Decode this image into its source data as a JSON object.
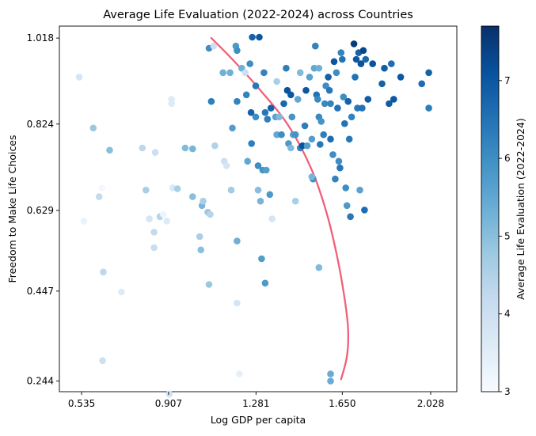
{
  "chart_data": {
    "type": "scatter",
    "title": "Average Life Evaluation (2022-2024) across Countries",
    "xlabel": "Log GDP per capita",
    "ylabel": "Freedom to Make Life Choices",
    "xlim": [
      0.44,
      2.14
    ],
    "ylim": [
      0.22,
      1.045
    ],
    "xticks": [
      0.535,
      0.907,
      1.281,
      1.65,
      2.028
    ],
    "xtick_labels": [
      "0.535",
      "0.907",
      "1.281",
      "1.650",
      "2.028"
    ],
    "yticks": [
      0.244,
      0.447,
      0.629,
      0.824,
      1.018
    ],
    "ytick_labels": [
      "0.244",
      "0.447",
      "0.629",
      "0.824",
      "1.018"
    ],
    "colorbar": {
      "label": "Average Life Evaluation (2022-2024)",
      "min": 3.0,
      "max": 7.7,
      "ticks": [
        3,
        4,
        5,
        6,
        7
      ],
      "tick_labels": [
        "3",
        "4",
        "5",
        "6",
        "7"
      ],
      "colormap": "Blues",
      "stops": [
        "#f7fbff",
        "#deebf7",
        "#c6dbef",
        "#9ecae1",
        "#6baed6",
        "#4292c6",
        "#2171b5",
        "#08519c",
        "#08306b"
      ]
    },
    "curve": {
      "color": "#f0607a",
      "points": [
        [
          1.09,
          1.018
        ],
        [
          1.18,
          0.97
        ],
        [
          1.3,
          0.9
        ],
        [
          1.42,
          0.82
        ],
        [
          1.52,
          0.72
        ],
        [
          1.585,
          0.62
        ],
        [
          1.63,
          0.52
        ],
        [
          1.66,
          0.43
        ],
        [
          1.675,
          0.36
        ],
        [
          1.67,
          0.3
        ],
        [
          1.645,
          0.248
        ]
      ]
    },
    "points": [
      [
        0.525,
        0.93,
        3.8
      ],
      [
        0.585,
        0.815,
        4.8
      ],
      [
        0.545,
        0.605,
        3.3
      ],
      [
        0.61,
        0.66,
        4.2
      ],
      [
        0.622,
        0.68,
        3.1
      ],
      [
        0.628,
        0.49,
        4.3
      ],
      [
        0.655,
        0.765,
        5.0
      ],
      [
        0.705,
        0.445,
        3.6
      ],
      [
        0.625,
        0.29,
        4.0
      ],
      [
        0.795,
        0.77,
        4.3
      ],
      [
        0.81,
        0.675,
        4.6
      ],
      [
        0.825,
        0.61,
        3.8
      ],
      [
        0.845,
        0.58,
        4.2
      ],
      [
        0.85,
        0.76,
        4.0
      ],
      [
        0.845,
        0.545,
        4.1
      ],
      [
        0.87,
        0.615,
        4.3
      ],
      [
        0.87,
        0.615,
        4.4
      ],
      [
        0.885,
        0.62,
        3.2
      ],
      [
        0.9,
        0.605,
        3.6
      ],
      [
        0.92,
        0.88,
        3.6
      ],
      [
        0.92,
        0.87,
        3.6
      ],
      [
        0.925,
        0.68,
        3.7
      ],
      [
        0.945,
        0.678,
        4.6
      ],
      [
        0.91,
        0.215,
        3.9
      ],
      [
        0.978,
        0.77,
        5.1
      ],
      [
        1.01,
        0.768,
        5.2
      ],
      [
        1.01,
        0.66,
        5.0
      ],
      [
        1.04,
        0.57,
        4.6
      ],
      [
        1.045,
        0.54,
        5.0
      ],
      [
        1.05,
        0.64,
        5.2
      ],
      [
        1.055,
        0.65,
        4.6
      ],
      [
        1.075,
        0.625,
        4.8
      ],
      [
        1.085,
        0.62,
        4.4
      ],
      [
        1.08,
        0.462,
        4.8
      ],
      [
        1.08,
        0.995,
        6.0
      ],
      [
        1.09,
        0.875,
        6.3
      ],
      [
        1.1,
        1.0,
        4.0
      ],
      [
        1.105,
        0.775,
        4.5
      ],
      [
        1.14,
        0.94,
        5.3
      ],
      [
        1.145,
        0.74,
        4.0
      ],
      [
        1.155,
        0.73,
        3.8
      ],
      [
        1.17,
        0.94,
        5.3
      ],
      [
        1.175,
        0.675,
        4.7
      ],
      [
        1.18,
        0.815,
        5.7
      ],
      [
        1.195,
        1.0,
        5.8
      ],
      [
        1.2,
        0.99,
        6.0
      ],
      [
        1.2,
        0.875,
        6.2
      ],
      [
        1.2,
        0.56,
        5.3
      ],
      [
        1.2,
        0.42,
        3.8
      ],
      [
        1.22,
        0.95,
        5.3
      ],
      [
        1.235,
        0.94,
        4.0
      ],
      [
        1.21,
        0.26,
        3.4
      ],
      [
        1.24,
        0.89,
        6.2
      ],
      [
        1.245,
        0.74,
        5.5
      ],
      [
        1.255,
        0.96,
        6.0
      ],
      [
        1.26,
        0.85,
        6.8
      ],
      [
        1.262,
        0.78,
        6.3
      ],
      [
        1.265,
        1.02,
        6.8
      ],
      [
        1.28,
        0.91,
        6.4
      ],
      [
        1.28,
        0.84,
        6.0
      ],
      [
        1.29,
        0.675,
        5.0
      ],
      [
        1.29,
        0.73,
        6.0
      ],
      [
        1.295,
        1.02,
        7.0
      ],
      [
        1.3,
        0.65,
        5.2
      ],
      [
        1.305,
        0.52,
        5.7
      ],
      [
        1.31,
        0.72,
        5.9
      ],
      [
        1.315,
        0.94,
        6.2
      ],
      [
        1.32,
        0.85,
        6.4
      ],
      [
        1.325,
        0.72,
        5.7
      ],
      [
        1.32,
        0.465,
        5.8
      ],
      [
        1.33,
        0.835,
        6.3
      ],
      [
        1.34,
        0.665,
        5.8
      ],
      [
        1.345,
        0.86,
        6.8
      ],
      [
        1.35,
        0.61,
        3.8
      ],
      [
        1.365,
        0.84,
        5.6
      ],
      [
        1.37,
        0.8,
        5.5
      ],
      [
        1.38,
        0.84,
        5.1
      ],
      [
        1.39,
        0.8,
        6.0
      ],
      [
        1.4,
        0.87,
        6.7
      ],
      [
        1.41,
        0.95,
        6.3
      ],
      [
        1.415,
        0.9,
        7.1
      ],
      [
        1.42,
        0.78,
        5.8
      ],
      [
        1.43,
        0.89,
        7.0
      ],
      [
        1.43,
        0.77,
        5.1
      ],
      [
        1.435,
        0.84,
        5.9
      ],
      [
        1.44,
        0.8,
        5.7
      ],
      [
        1.45,
        0.65,
        4.6
      ],
      [
        1.45,
        0.8,
        5.9
      ],
      [
        1.46,
        0.88,
        5.5
      ],
      [
        1.47,
        0.77,
        6.2
      ],
      [
        1.48,
        0.775,
        7.1
      ],
      [
        1.49,
        0.82,
        6.3
      ],
      [
        1.495,
        0.9,
        7.0
      ],
      [
        1.5,
        0.775,
        5.7
      ],
      [
        1.52,
        0.79,
        5.7
      ],
      [
        1.525,
        0.7,
        6.0
      ],
      [
        1.53,
        0.95,
        5.5
      ],
      [
        1.535,
        1.0,
        6.2
      ],
      [
        1.54,
        0.89,
        6.5
      ],
      [
        1.545,
        0.88,
        6.1
      ],
      [
        1.55,
        0.84,
        6.1
      ],
      [
        1.555,
        0.778,
        6.4
      ],
      [
        1.56,
        0.83,
        5.9
      ],
      [
        1.57,
        0.8,
        6.3
      ],
      [
        1.575,
        0.87,
        6.1
      ],
      [
        1.58,
        0.91,
        6.0
      ],
      [
        1.59,
        0.93,
        6.8
      ],
      [
        1.595,
        0.9,
        6.4
      ],
      [
        1.6,
        0.87,
        6.2
      ],
      [
        1.6,
        0.79,
        6.6
      ],
      [
        1.61,
        0.755,
        6.0
      ],
      [
        1.615,
        0.965,
        7.0
      ],
      [
        1.62,
        0.7,
        6.2
      ],
      [
        1.625,
        0.94,
        6.0
      ],
      [
        1.63,
        0.86,
        6.5
      ],
      [
        1.635,
        0.74,
        6.0
      ],
      [
        1.64,
        0.725,
        6.4
      ],
      [
        1.645,
        0.985,
        6.2
      ],
      [
        1.65,
        0.97,
        6.5
      ],
      [
        1.655,
        0.885,
        6.0
      ],
      [
        1.66,
        0.825,
        6.5
      ],
      [
        1.665,
        0.68,
        6.0
      ],
      [
        1.67,
        0.64,
        5.8
      ],
      [
        1.675,
        0.875,
        6.8
      ],
      [
        1.68,
        0.79,
        6.4
      ],
      [
        1.685,
        0.615,
        6.4
      ],
      [
        1.69,
        0.84,
        6.2
      ],
      [
        1.7,
        1.005,
        7.5
      ],
      [
        1.705,
        0.93,
        6.5
      ],
      [
        1.71,
        0.97,
        7.0
      ],
      [
        1.715,
        0.86,
        6.4
      ],
      [
        1.72,
        0.985,
        6.8
      ],
      [
        1.725,
        0.675,
        5.6
      ],
      [
        1.73,
        0.96,
        7.1
      ],
      [
        1.735,
        0.86,
        6.5
      ],
      [
        1.74,
        0.99,
        7.3
      ],
      [
        1.745,
        0.63,
        6.6
      ],
      [
        1.75,
        0.97,
        6.7
      ],
      [
        1.76,
        0.88,
        6.9
      ],
      [
        1.78,
        0.96,
        7.1
      ],
      [
        1.82,
        0.915,
        6.8
      ],
      [
        1.83,
        0.95,
        6.9
      ],
      [
        1.85,
        0.87,
        6.9
      ],
      [
        1.55,
        0.5,
        5.1
      ],
      [
        1.52,
        0.705,
        5.2
      ],
      [
        1.6,
        0.26,
        5.4
      ],
      [
        1.6,
        0.244,
        5.4
      ],
      [
        1.47,
        0.94,
        5.1
      ],
      [
        1.37,
        0.92,
        4.6
      ],
      [
        1.51,
        0.93,
        5.6
      ],
      [
        1.55,
        0.95,
        5.3
      ],
      [
        1.86,
        0.96,
        6.6
      ],
      [
        1.87,
        0.88,
        7.0
      ],
      [
        1.9,
        0.93,
        7.0
      ],
      [
        2.02,
        0.94,
        6.8
      ],
      [
        2.02,
        0.86,
        6.3
      ],
      [
        1.99,
        0.915,
        6.6
      ]
    ]
  }
}
